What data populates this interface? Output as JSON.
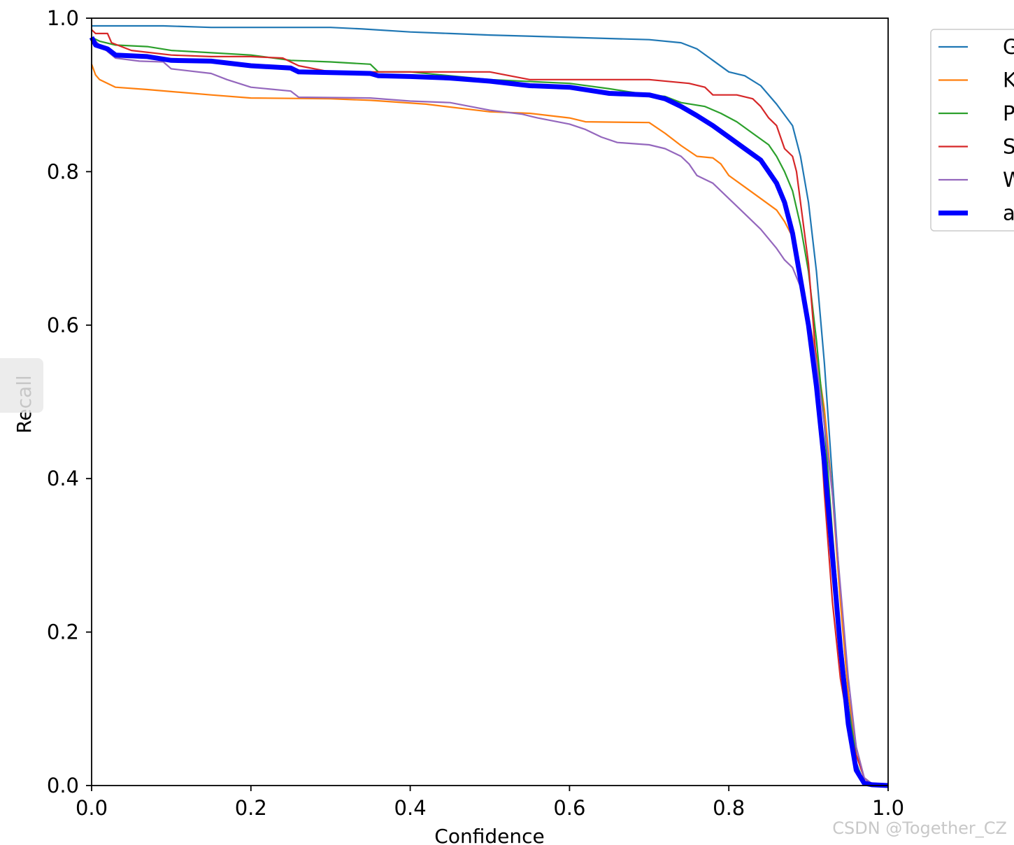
{
  "chart_data": {
    "type": "line",
    "title": "",
    "xlabel": "Confidence",
    "ylabel": "Recall",
    "xlim": [
      0,
      1
    ],
    "ylim": [
      0,
      1
    ],
    "xticks": [
      "0.0",
      "0.2",
      "0.4",
      "0.6",
      "0.8",
      "1.0"
    ],
    "yticks": [
      "0.0",
      "0.2",
      "0.4",
      "0.6",
      "0.8",
      "1.0"
    ],
    "grid": false,
    "legend_position": "outside-top-right",
    "series": [
      {
        "name": "G",
        "color": "#1f77b4",
        "width": "thin",
        "points": [
          [
            0,
            0.99
          ],
          [
            0.01,
            0.99
          ],
          [
            0.09,
            0.99
          ],
          [
            0.15,
            0.988
          ],
          [
            0.3,
            0.988
          ],
          [
            0.34,
            0.986
          ],
          [
            0.4,
            0.982
          ],
          [
            0.45,
            0.98
          ],
          [
            0.5,
            0.978
          ],
          [
            0.6,
            0.975
          ],
          [
            0.7,
            0.972
          ],
          [
            0.74,
            0.968
          ],
          [
            0.76,
            0.96
          ],
          [
            0.78,
            0.945
          ],
          [
            0.8,
            0.93
          ],
          [
            0.82,
            0.925
          ],
          [
            0.84,
            0.912
          ],
          [
            0.86,
            0.888
          ],
          [
            0.88,
            0.86
          ],
          [
            0.89,
            0.82
          ],
          [
            0.9,
            0.76
          ],
          [
            0.91,
            0.67
          ],
          [
            0.92,
            0.55
          ],
          [
            0.93,
            0.4
          ],
          [
            0.94,
            0.25
          ],
          [
            0.95,
            0.12
          ],
          [
            0.96,
            0.03
          ],
          [
            0.97,
            0.003
          ],
          [
            0.98,
            0.001
          ],
          [
            1,
            0
          ]
        ]
      },
      {
        "name": "K",
        "color": "#ff7f0e",
        "width": "thin",
        "points": [
          [
            0,
            0.94
          ],
          [
            0.005,
            0.926
          ],
          [
            0.01,
            0.92
          ],
          [
            0.02,
            0.915
          ],
          [
            0.03,
            0.91
          ],
          [
            0.07,
            0.907
          ],
          [
            0.15,
            0.9
          ],
          [
            0.2,
            0.896
          ],
          [
            0.3,
            0.895
          ],
          [
            0.35,
            0.893
          ],
          [
            0.42,
            0.888
          ],
          [
            0.5,
            0.878
          ],
          [
            0.55,
            0.876
          ],
          [
            0.6,
            0.87
          ],
          [
            0.62,
            0.865
          ],
          [
            0.7,
            0.864
          ],
          [
            0.72,
            0.85
          ],
          [
            0.74,
            0.834
          ],
          [
            0.76,
            0.82
          ],
          [
            0.78,
            0.818
          ],
          [
            0.79,
            0.81
          ],
          [
            0.8,
            0.795
          ],
          [
            0.82,
            0.78
          ],
          [
            0.84,
            0.765
          ],
          [
            0.86,
            0.75
          ],
          [
            0.87,
            0.735
          ],
          [
            0.88,
            0.715
          ],
          [
            0.89,
            0.66
          ],
          [
            0.9,
            0.61
          ],
          [
            0.91,
            0.56
          ],
          [
            0.92,
            0.49
          ],
          [
            0.93,
            0.38
          ],
          [
            0.94,
            0.24
          ],
          [
            0.95,
            0.12
          ],
          [
            0.96,
            0.05
          ],
          [
            0.97,
            0.01
          ],
          [
            0.98,
            0.002
          ],
          [
            1,
            0
          ]
        ]
      },
      {
        "name": "P",
        "color": "#2ca02c",
        "width": "thin",
        "points": [
          [
            0,
            0.975
          ],
          [
            0.01,
            0.97
          ],
          [
            0.03,
            0.965
          ],
          [
            0.07,
            0.963
          ],
          [
            0.1,
            0.958
          ],
          [
            0.15,
            0.955
          ],
          [
            0.2,
            0.952
          ],
          [
            0.25,
            0.945
          ],
          [
            0.3,
            0.943
          ],
          [
            0.35,
            0.94
          ],
          [
            0.36,
            0.93
          ],
          [
            0.4,
            0.93
          ],
          [
            0.45,
            0.925
          ],
          [
            0.5,
            0.92
          ],
          [
            0.6,
            0.915
          ],
          [
            0.65,
            0.908
          ],
          [
            0.7,
            0.9
          ],
          [
            0.72,
            0.898
          ],
          [
            0.74,
            0.89
          ],
          [
            0.77,
            0.885
          ],
          [
            0.79,
            0.876
          ],
          [
            0.81,
            0.865
          ],
          [
            0.83,
            0.85
          ],
          [
            0.85,
            0.835
          ],
          [
            0.86,
            0.82
          ],
          [
            0.87,
            0.8
          ],
          [
            0.88,
            0.775
          ],
          [
            0.89,
            0.73
          ],
          [
            0.9,
            0.67
          ],
          [
            0.91,
            0.58
          ],
          [
            0.92,
            0.47
          ],
          [
            0.93,
            0.33
          ],
          [
            0.94,
            0.2
          ],
          [
            0.95,
            0.1
          ],
          [
            0.96,
            0.04
          ],
          [
            0.97,
            0.01
          ],
          [
            0.98,
            0.002
          ],
          [
            1,
            0
          ]
        ]
      },
      {
        "name": "S",
        "color": "#d62728",
        "width": "thin",
        "points": [
          [
            0,
            0.985
          ],
          [
            0.005,
            0.98
          ],
          [
            0.02,
            0.98
          ],
          [
            0.025,
            0.968
          ],
          [
            0.05,
            0.958
          ],
          [
            0.1,
            0.952
          ],
          [
            0.15,
            0.95
          ],
          [
            0.2,
            0.95
          ],
          [
            0.24,
            0.948
          ],
          [
            0.26,
            0.938
          ],
          [
            0.3,
            0.93
          ],
          [
            0.4,
            0.93
          ],
          [
            0.5,
            0.93
          ],
          [
            0.55,
            0.92
          ],
          [
            0.7,
            0.92
          ],
          [
            0.75,
            0.915
          ],
          [
            0.77,
            0.91
          ],
          [
            0.78,
            0.9
          ],
          [
            0.81,
            0.9
          ],
          [
            0.83,
            0.895
          ],
          [
            0.84,
            0.885
          ],
          [
            0.85,
            0.87
          ],
          [
            0.86,
            0.86
          ],
          [
            0.87,
            0.83
          ],
          [
            0.88,
            0.82
          ],
          [
            0.885,
            0.8
          ],
          [
            0.89,
            0.76
          ],
          [
            0.9,
            0.68
          ],
          [
            0.91,
            0.55
          ],
          [
            0.92,
            0.38
          ],
          [
            0.93,
            0.24
          ],
          [
            0.94,
            0.14
          ],
          [
            0.95,
            0.08
          ],
          [
            0.96,
            0.04
          ],
          [
            0.97,
            0.01
          ],
          [
            0.98,
            0
          ],
          [
            1,
            0
          ]
        ]
      },
      {
        "name": "W",
        "color": "#9467bd",
        "width": "thin",
        "points": [
          [
            0,
            0.975
          ],
          [
            0.01,
            0.965
          ],
          [
            0.03,
            0.948
          ],
          [
            0.06,
            0.944
          ],
          [
            0.09,
            0.943
          ],
          [
            0.1,
            0.934
          ],
          [
            0.15,
            0.928
          ],
          [
            0.17,
            0.92
          ],
          [
            0.2,
            0.91
          ],
          [
            0.25,
            0.905
          ],
          [
            0.26,
            0.897
          ],
          [
            0.35,
            0.896
          ],
          [
            0.4,
            0.892
          ],
          [
            0.45,
            0.89
          ],
          [
            0.5,
            0.88
          ],
          [
            0.54,
            0.875
          ],
          [
            0.56,
            0.87
          ],
          [
            0.6,
            0.862
          ],
          [
            0.62,
            0.855
          ],
          [
            0.64,
            0.845
          ],
          [
            0.66,
            0.838
          ],
          [
            0.7,
            0.835
          ],
          [
            0.72,
            0.83
          ],
          [
            0.74,
            0.82
          ],
          [
            0.75,
            0.81
          ],
          [
            0.76,
            0.795
          ],
          [
            0.78,
            0.785
          ],
          [
            0.8,
            0.765
          ],
          [
            0.82,
            0.745
          ],
          [
            0.83,
            0.735
          ],
          [
            0.84,
            0.725
          ],
          [
            0.86,
            0.7
          ],
          [
            0.87,
            0.685
          ],
          [
            0.88,
            0.675
          ],
          [
            0.89,
            0.65
          ],
          [
            0.9,
            0.61
          ],
          [
            0.91,
            0.55
          ],
          [
            0.92,
            0.47
          ],
          [
            0.93,
            0.38
          ],
          [
            0.94,
            0.26
          ],
          [
            0.95,
            0.14
          ],
          [
            0.96,
            0.05
          ],
          [
            0.97,
            0.01
          ],
          [
            0.98,
            0.002
          ],
          [
            1,
            0
          ]
        ]
      },
      {
        "name": "a",
        "color": "#0000ff",
        "width": "thick",
        "points": [
          [
            0,
            0.975
          ],
          [
            0.005,
            0.965
          ],
          [
            0.02,
            0.96
          ],
          [
            0.03,
            0.952
          ],
          [
            0.07,
            0.95
          ],
          [
            0.1,
            0.945
          ],
          [
            0.15,
            0.944
          ],
          [
            0.2,
            0.938
          ],
          [
            0.25,
            0.935
          ],
          [
            0.26,
            0.93
          ],
          [
            0.35,
            0.928
          ],
          [
            0.36,
            0.925
          ],
          [
            0.4,
            0.924
          ],
          [
            0.45,
            0.922
          ],
          [
            0.5,
            0.918
          ],
          [
            0.55,
            0.912
          ],
          [
            0.6,
            0.91
          ],
          [
            0.65,
            0.902
          ],
          [
            0.7,
            0.9
          ],
          [
            0.72,
            0.895
          ],
          [
            0.74,
            0.885
          ],
          [
            0.76,
            0.873
          ],
          [
            0.78,
            0.86
          ],
          [
            0.8,
            0.845
          ],
          [
            0.82,
            0.83
          ],
          [
            0.84,
            0.815
          ],
          [
            0.85,
            0.8
          ],
          [
            0.86,
            0.785
          ],
          [
            0.87,
            0.76
          ],
          [
            0.88,
            0.72
          ],
          [
            0.89,
            0.66
          ],
          [
            0.9,
            0.6
          ],
          [
            0.91,
            0.52
          ],
          [
            0.92,
            0.42
          ],
          [
            0.93,
            0.3
          ],
          [
            0.94,
            0.18
          ],
          [
            0.95,
            0.08
          ],
          [
            0.96,
            0.02
          ],
          [
            0.97,
            0.003
          ],
          [
            0.98,
            0.001
          ],
          [
            1,
            0
          ]
        ]
      }
    ]
  },
  "watermark": "CSDN @Together_CZ"
}
